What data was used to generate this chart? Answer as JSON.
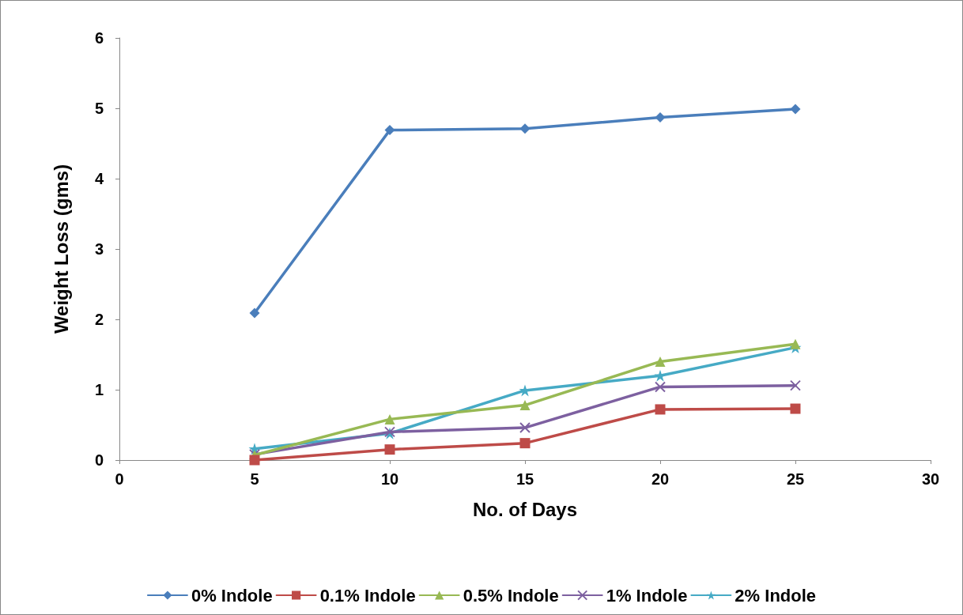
{
  "chart_data": {
    "type": "line",
    "xlabel": "No. of Days",
    "ylabel": "Weight Loss (gms)",
    "x": [
      5,
      10,
      15,
      20,
      25
    ],
    "xlim": [
      0,
      30
    ],
    "xticks": [
      0,
      5,
      10,
      15,
      20,
      25,
      30
    ],
    "ylim": [
      0,
      6
    ],
    "yticks": [
      0,
      1,
      2,
      3,
      4,
      5,
      6
    ],
    "grid": false,
    "legend": "bottom",
    "line_style": "solid",
    "series": [
      {
        "name": "0% Indole",
        "color": "#4a7ebb",
        "marker": "diamond",
        "values": [
          2.09,
          4.69,
          4.71,
          4.87,
          4.99
        ]
      },
      {
        "name": "0.1% Indole",
        "color": "#be4b48",
        "marker": "square",
        "values": [
          0.0,
          0.15,
          0.24,
          0.72,
          0.73
        ]
      },
      {
        "name": "0.5% Indole",
        "color": "#98b954",
        "marker": "triangle",
        "values": [
          0.07,
          0.58,
          0.78,
          1.4,
          1.65
        ]
      },
      {
        "name": "1% Indole",
        "color": "#7d60a0",
        "marker": "cross",
        "values": [
          0.08,
          0.4,
          0.46,
          1.04,
          1.06
        ]
      },
      {
        "name": "2% Indole",
        "color": "#46aac5",
        "marker": "star",
        "values": [
          0.16,
          0.38,
          0.99,
          1.2,
          1.6
        ]
      }
    ]
  }
}
